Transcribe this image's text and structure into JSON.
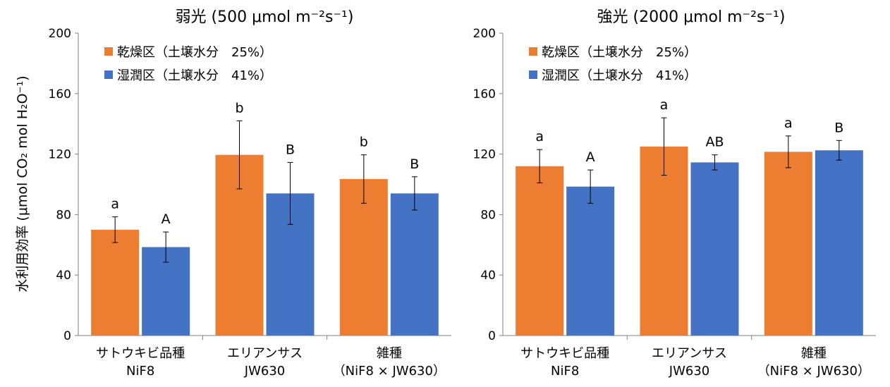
{
  "y_axis_label": "水利用効率 (μmol CO₂ mol H₂O⁻¹)",
  "legend": {
    "dry": "乾燥区（土壌水分　25%）",
    "wet": "湿潤区（土壌水分　41%）"
  },
  "colors": {
    "dry": "#ED7D31",
    "wet": "#4472C4",
    "axis": "#808080"
  },
  "chart_data": [
    {
      "type": "bar",
      "title": "弱光 (500 μmol m⁻²s⁻¹)",
      "categories": [
        [
          "サトウキビ品種",
          "NiF8"
        ],
        [
          "エリアンサス",
          "JW630"
        ],
        [
          "雑種",
          "（NiF8 × JW630）"
        ]
      ],
      "ylim": [
        0,
        200
      ],
      "yticks": [
        "0",
        "40",
        "80",
        "120",
        "160",
        "200"
      ],
      "series": [
        {
          "name": "乾燥区（土壌水分　25%）",
          "values": [
            70,
            119.5,
            103.5
          ],
          "errors": [
            8.5,
            22.5,
            16
          ],
          "labels": [
            "a",
            "b",
            "b"
          ]
        },
        {
          "name": "湿潤区（土壌水分　41%）",
          "values": [
            58.5,
            94,
            94
          ],
          "errors": [
            10,
            20.5,
            11
          ],
          "labels": [
            "A",
            "B",
            "B"
          ]
        }
      ]
    },
    {
      "type": "bar",
      "title": "強光 (2000 μmol m⁻²s⁻¹)",
      "categories": [
        [
          "サトウキビ品種",
          "NiF8"
        ],
        [
          "エリアンサス",
          "JW630"
        ],
        [
          "雑種",
          "（NiF8 × JW630）"
        ]
      ],
      "ylim": [
        0,
        200
      ],
      "yticks": [
        "0",
        "40",
        "80",
        "120",
        "160",
        "200"
      ],
      "series": [
        {
          "name": "乾燥区（土壌水分　25%）",
          "values": [
            112,
            125,
            121.5
          ],
          "errors": [
            11,
            19,
            10.5
          ],
          "labels": [
            "a",
            "a",
            "a"
          ]
        },
        {
          "name": "湿潤区（土壌水分　41%）",
          "values": [
            98.5,
            114.5,
            122.5
          ],
          "errors": [
            11,
            5,
            6.5
          ],
          "labels": [
            "A",
            "AB",
            "B"
          ]
        }
      ]
    }
  ]
}
